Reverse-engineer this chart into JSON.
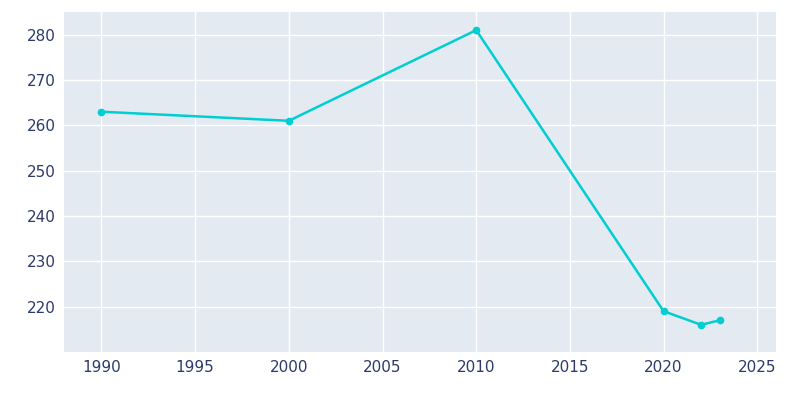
{
  "years": [
    1990,
    2000,
    2010,
    2020,
    2022,
    2023
  ],
  "population": [
    263,
    261,
    281,
    219,
    216,
    217
  ],
  "line_color": "#00CED1",
  "marker_color": "#00CED1",
  "bg_outer": "#FFFFFF",
  "bg_inner": "#E3EAF2",
  "grid_color": "#FFFFFF",
  "xlim": [
    1988,
    2026
  ],
  "ylim": [
    210,
    285
  ],
  "xticks": [
    1990,
    1995,
    2000,
    2005,
    2010,
    2015,
    2020,
    2025
  ],
  "yticks": [
    220,
    230,
    240,
    250,
    260,
    270,
    280
  ],
  "tick_label_color": "#2B3A6B",
  "linewidth": 1.8,
  "markersize": 4.5
}
